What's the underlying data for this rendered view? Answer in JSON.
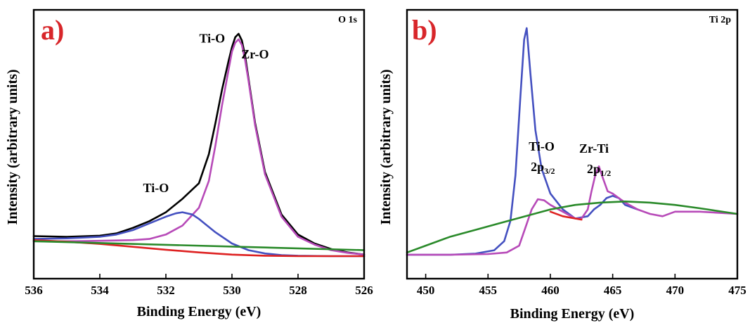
{
  "colors": {
    "envelope": "#000000",
    "main_peak": "#b74ab8",
    "secondary_peak": "#4450c0",
    "background_a": "#de2222",
    "background_b": "#2a8a2a",
    "panel_letter": "#d8262a"
  },
  "chart_data": [
    {
      "type": "line",
      "panel_letter": "a)",
      "title": "O 1s",
      "xlabel": "Binding Energy (eV)",
      "ylabel": "Intensity (arbitrary units)",
      "xlim": [
        536,
        526
      ],
      "x_reversed": true,
      "ylim": [
        0,
        1
      ],
      "x_ticks": [
        "536",
        "534",
        "532",
        "530",
        "528",
        "526"
      ],
      "y_ticks": [],
      "annotations": [
        {
          "text": "Ti-O",
          "x": 530.6,
          "y": 0.96
        },
        {
          "text": "Zr-O",
          "x": 529.3,
          "y": 0.89
        },
        {
          "text": "Ti-O",
          "x": 532.3,
          "y": 0.29
        }
      ],
      "series": [
        {
          "role": "envelope",
          "color": "#000000",
          "x": [
            536,
            535,
            534,
            533.5,
            533,
            532.5,
            532,
            531.5,
            531,
            530.7,
            530.5,
            530.3,
            530.1,
            530,
            529.9,
            529.8,
            529.7,
            529.6,
            529.5,
            529.3,
            529,
            528.5,
            528,
            527.5,
            527,
            526.5,
            526
          ],
          "y": [
            0.093,
            0.09,
            0.095,
            0.105,
            0.13,
            0.16,
            0.2,
            0.26,
            0.33,
            0.46,
            0.6,
            0.75,
            0.88,
            0.94,
            0.985,
            1.0,
            0.97,
            0.9,
            0.8,
            0.6,
            0.38,
            0.19,
            0.1,
            0.06,
            0.035,
            0.02,
            0.01
          ]
        },
        {
          "role": "main-peak",
          "color": "#b74ab8",
          "x": [
            536,
            535,
            534,
            533,
            532.5,
            532,
            531.5,
            531,
            530.7,
            530.5,
            530.3,
            530.1,
            530,
            529.9,
            529.8,
            529.7,
            529.6,
            529.5,
            529.3,
            529,
            528.5,
            528,
            527.5,
            527,
            526.5,
            526
          ],
          "y": [
            0.07,
            0.07,
            0.072,
            0.075,
            0.08,
            0.1,
            0.14,
            0.22,
            0.34,
            0.5,
            0.68,
            0.84,
            0.92,
            0.96,
            0.975,
            0.95,
            0.88,
            0.79,
            0.59,
            0.37,
            0.18,
            0.09,
            0.055,
            0.03,
            0.018,
            0.01
          ]
        },
        {
          "role": "secondary-peak",
          "color": "#4450c0",
          "x": [
            536,
            535,
            534,
            533.5,
            533,
            532.5,
            532,
            531.7,
            531.5,
            531.2,
            531,
            530.5,
            530,
            529.5,
            529,
            528.5,
            528,
            527,
            526
          ],
          "y": [
            0.08,
            0.083,
            0.09,
            0.1,
            0.12,
            0.15,
            0.18,
            0.195,
            0.2,
            0.19,
            0.17,
            0.11,
            0.06,
            0.03,
            0.015,
            0.008,
            0.005,
            0.003,
            0.003
          ]
        },
        {
          "role": "background",
          "color": "#de2222",
          "x": [
            536,
            535,
            534,
            533,
            532,
            531,
            530,
            529,
            528,
            527,
            526
          ],
          "y": [
            0.075,
            0.068,
            0.058,
            0.045,
            0.032,
            0.02,
            0.01,
            0.005,
            0.003,
            0.003,
            0.003
          ]
        },
        {
          "role": "background",
          "color": "#2a8a2a",
          "x": [
            536,
            526
          ],
          "y": [
            0.07,
            0.03
          ]
        }
      ]
    },
    {
      "type": "line",
      "panel_letter": "b)",
      "title": "Ti 2p",
      "xlabel": "Binding Energy (eV)",
      "ylabel": "Intensity (arbitrary units)",
      "xlim": [
        448.5,
        475
      ],
      "x_reversed": false,
      "ylim": [
        0,
        1
      ],
      "x_ticks": [
        "450",
        "455",
        "460",
        "465",
        "470",
        "475"
      ],
      "y_ticks": [],
      "annotations": [
        {
          "text": "Ti-O",
          "x": 459.3,
          "y": 0.46
        },
        {
          "text": "2p",
          "sub": "3/2",
          "x": 459.4,
          "y": 0.37
        },
        {
          "text": "Zr-Ti",
          "x": 463.5,
          "y": 0.45
        },
        {
          "text": "2p",
          "sub": "1/2",
          "x": 463.9,
          "y": 0.36
        }
      ],
      "series": [
        {
          "role": "main-peak",
          "color": "#4450c0",
          "x": [
            448.5,
            450,
            452,
            454,
            455.5,
            456.3,
            456.8,
            457.2,
            457.6,
            457.9,
            458.1,
            458.4,
            458.8,
            459.3,
            460,
            461,
            462,
            463,
            463.5,
            464,
            464.5,
            465,
            465.5,
            466,
            467
          ],
          "y": [
            0.0,
            0.0,
            0.0,
            0.005,
            0.02,
            0.06,
            0.15,
            0.35,
            0.7,
            0.95,
            1.0,
            0.8,
            0.55,
            0.38,
            0.27,
            0.2,
            0.16,
            0.17,
            0.2,
            0.22,
            0.25,
            0.26,
            0.25,
            0.22,
            0.2
          ]
        },
        {
          "role": "secondary-peak",
          "color": "#b74ab8",
          "x": [
            448.5,
            452,
            455,
            456.5,
            457.5,
            458,
            458.5,
            459,
            459.5,
            460,
            461,
            462,
            462.5,
            463,
            463.3,
            463.6,
            463.9,
            464.2,
            464.6,
            465,
            465.5,
            466,
            467,
            468,
            469,
            470,
            472,
            475
          ],
          "y": [
            0.0,
            0.0,
            0.003,
            0.01,
            0.04,
            0.12,
            0.2,
            0.245,
            0.24,
            0.22,
            0.19,
            0.16,
            0.16,
            0.2,
            0.28,
            0.35,
            0.39,
            0.34,
            0.28,
            0.27,
            0.25,
            0.23,
            0.2,
            0.18,
            0.17,
            0.19,
            0.19,
            0.18
          ]
        },
        {
          "role": "background",
          "color": "#de2222",
          "x": [
            460,
            461,
            462,
            462.5
          ],
          "y": [
            0.19,
            0.17,
            0.16,
            0.155
          ]
        },
        {
          "role": "background",
          "color": "#2a8a2a",
          "x": [
            448.5,
            450,
            452,
            454,
            456,
            458,
            460,
            462,
            464,
            466,
            468,
            470,
            472,
            475
          ],
          "y": [
            0.01,
            0.04,
            0.08,
            0.11,
            0.14,
            0.17,
            0.2,
            0.22,
            0.23,
            0.235,
            0.23,
            0.22,
            0.205,
            0.18
          ]
        }
      ]
    }
  ]
}
